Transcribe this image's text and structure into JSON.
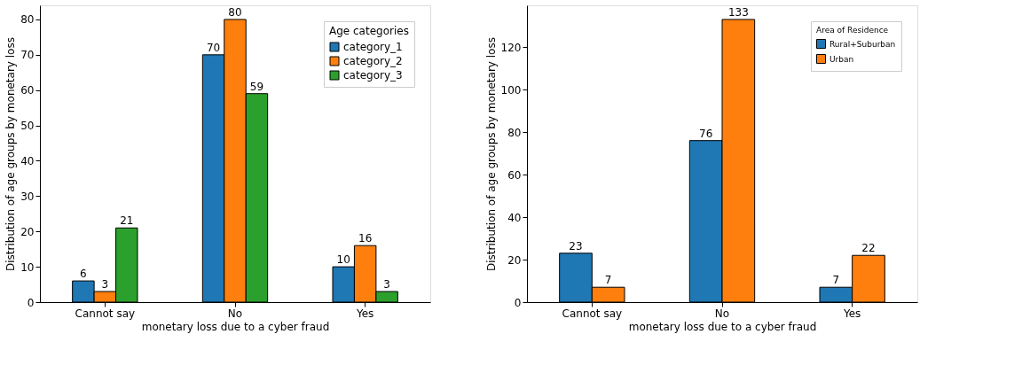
{
  "chart_data": [
    {
      "type": "bar",
      "xlabel": "monetary loss due to a cyber fraud",
      "ylabel": "Distribution of age groups by monetary loss",
      "legend_title": "Age categories",
      "categories": [
        "Cannot say",
        "No",
        "Yes"
      ],
      "series": [
        {
          "name": "category_1",
          "color": "#1f77b4",
          "values": [
            6,
            70,
            10
          ]
        },
        {
          "name": "category_2",
          "color": "#ff7f0e",
          "values": [
            3,
            80,
            16
          ]
        },
        {
          "name": "category_3",
          "color": "#2ca02c",
          "values": [
            21,
            59,
            3
          ]
        }
      ],
      "ylim": [
        0,
        84
      ],
      "yticks": [
        0,
        10,
        20,
        30,
        40,
        50,
        60,
        70,
        80
      ],
      "grid": false,
      "legend": "top right",
      "data_labels": true
    },
    {
      "type": "bar",
      "xlabel": "monetary loss due to a cyber fraud",
      "ylabel": "Distribution of age groups by monetary loss",
      "legend_title": "Area of Residence",
      "categories": [
        "Cannot say",
        "No",
        "Yes"
      ],
      "series": [
        {
          "name": "Rural+Suburban",
          "color": "#1f77b4",
          "values": [
            23,
            76,
            7
          ]
        },
        {
          "name": "Urban",
          "color": "#ff7f0e",
          "values": [
            7,
            133,
            22
          ]
        }
      ],
      "ylim": [
        0,
        139.65
      ],
      "yticks": [
        0,
        20,
        40,
        60,
        80,
        100,
        120
      ],
      "grid": false,
      "legend": "top right",
      "data_labels": true
    }
  ]
}
